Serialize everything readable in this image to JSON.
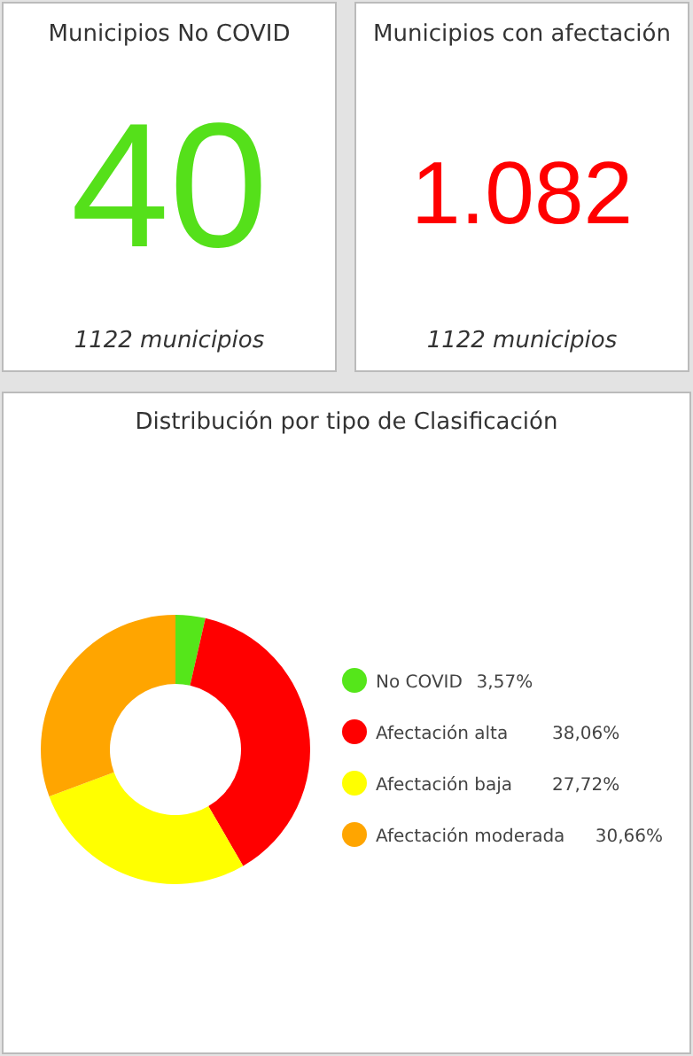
{
  "chart_data": [
    {
      "type": "other",
      "title": "Municipios No COVID",
      "color": "#55e01a",
      "annotations": [
        "40",
        "1122 municipios"
      ]
    },
    {
      "type": "other",
      "title": "Municipios con afectación",
      "color": "#ff0000",
      "annotations": [
        "1.082",
        "1122 municipios"
      ]
    },
    {
      "type": "donut",
      "title": "Distribución por tipo de Clasificación",
      "categories": [
        "No COVID",
        "Afectación alta",
        "Afectación baja",
        "Afectación moderada"
      ],
      "values": [
        3.57,
        38.06,
        27.72,
        30.66
      ],
      "colors": [
        "#55e61a",
        "#ff0000",
        "#ffff00",
        "#ffa500"
      ],
      "value_labels": [
        "3,57%",
        "38,06%",
        "27,72%",
        "30,66%"
      ],
      "legend": "right"
    }
  ]
}
